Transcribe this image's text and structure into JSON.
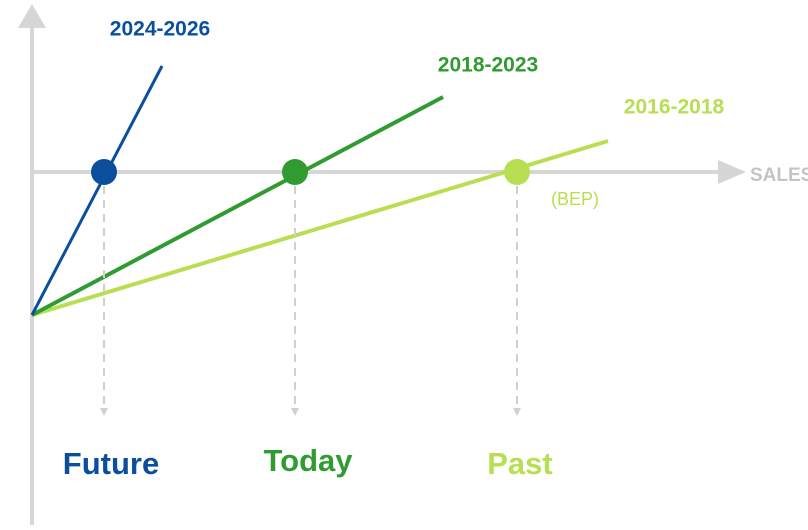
{
  "axis_label": "SALES (K$)",
  "annotation": "(BEP)",
  "lines": [
    {
      "label": "2024-2026",
      "outcome": "Future"
    },
    {
      "label": "2018-2023",
      "outcome": "Today"
    },
    {
      "label": "2016-2018",
      "outcome": "Past"
    }
  ]
}
